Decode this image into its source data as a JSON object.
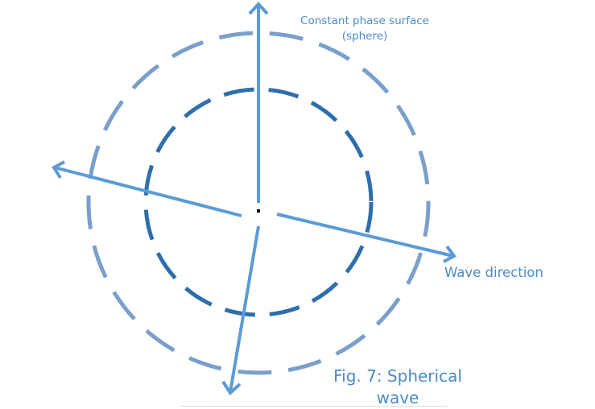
{
  "labels": {
    "surface_line1": "Constant phase surface",
    "surface_line2": "(sphere)",
    "direction": "Wave direction",
    "caption_line1": "Fig. 7: Spherical",
    "caption_line2": "wave"
  },
  "colors": {
    "arrow": "#5b9bd5",
    "outer_sphere": "#7a9fca",
    "inner_sphere": "#2e6fab",
    "text": "#4a8bc9",
    "source_point": "#000000"
  }
}
